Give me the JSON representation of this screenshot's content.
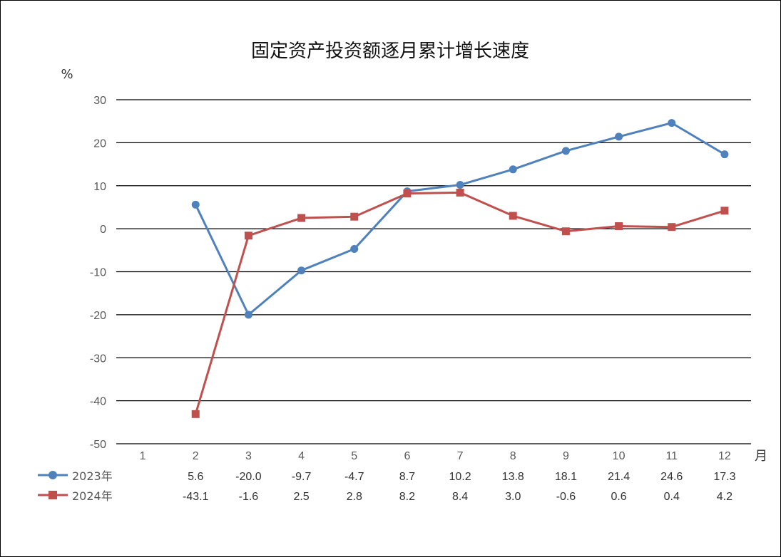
{
  "chart_data": {
    "type": "line",
    "title": "固定资产投资额逐月累计增长速度",
    "ylabel": "%",
    "xlabel": "月",
    "ylim": [
      -50,
      30
    ],
    "yticks": [
      "30",
      "20",
      "10",
      "0",
      "-10",
      "-20",
      "-30",
      "-40",
      "-50"
    ],
    "categories": [
      "1",
      "2",
      "3",
      "4",
      "5",
      "6",
      "7",
      "8",
      "9",
      "10",
      "11",
      "12"
    ],
    "grid": true,
    "legend_position": "bottom-left (data table)",
    "series": [
      {
        "name": "2023年",
        "color": "#4F81BD",
        "marker": "circle",
        "values": [
          null,
          5.6,
          -20.0,
          -9.7,
          -4.7,
          8.7,
          10.2,
          13.8,
          18.1,
          21.4,
          24.6,
          17.3
        ],
        "labels": [
          "",
          "5.6",
          "-20.0",
          "-9.7",
          "-4.7",
          "8.7",
          "10.2",
          "13.8",
          "18.1",
          "21.4",
          "24.6",
          "17.3"
        ]
      },
      {
        "name": "2024年",
        "color": "#C0504D",
        "marker": "square",
        "values": [
          null,
          -43.1,
          -1.6,
          2.5,
          2.8,
          8.2,
          8.4,
          3.0,
          -0.6,
          0.6,
          0.4,
          4.2
        ],
        "labels": [
          "",
          "-43.1",
          "-1.6",
          "2.5",
          "2.8",
          "8.2",
          "8.4",
          "3.0",
          "-0.6",
          "0.6",
          "0.4",
          "4.2"
        ]
      }
    ]
  }
}
